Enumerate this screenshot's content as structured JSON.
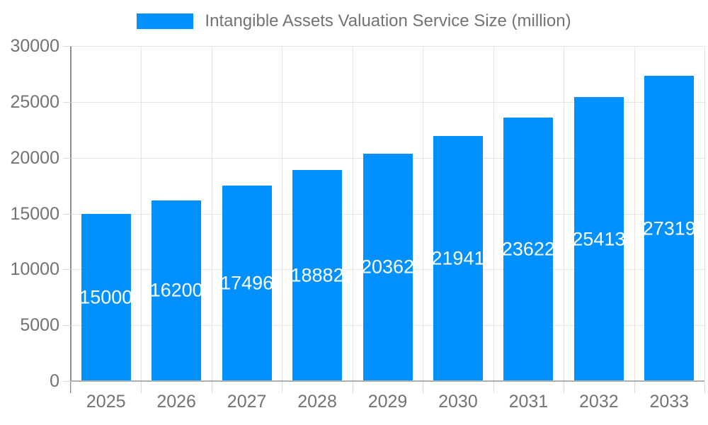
{
  "palette": {
    "bar": "#0190FF",
    "bar_label": "#ffffff",
    "grid": "#e4e4e4",
    "tick": "#d9d9d9",
    "axis_line_x": "#aeaeae",
    "axis_line_y": "#8c8c8c",
    "axis_text": "#737373",
    "legend_text": "#737373",
    "background": "#ffffff"
  },
  "chart_data": {
    "type": "bar",
    "title": "",
    "xlabel": "",
    "ylabel": "",
    "legend": [
      "Intangible Assets Valuation Service Size (million)"
    ],
    "legend_position": "top",
    "categories": [
      "2025",
      "2026",
      "2027",
      "2028",
      "2029",
      "2030",
      "2031",
      "2032",
      "2033"
    ],
    "series": [
      {
        "name": "Intangible Assets Valuation Service Size (million)",
        "values": [
          15000,
          16200,
          17496,
          18882,
          20362,
          21941,
          23622,
          25413,
          27319
        ]
      }
    ],
    "values": [
      15000,
      16200,
      17496,
      18882,
      20362,
      21941,
      23622,
      25413,
      27319
    ],
    "data_labels": "inside-center",
    "ylim": [
      0,
      30000
    ],
    "yticks": [
      0,
      5000,
      10000,
      15000,
      20000,
      25000,
      30000
    ],
    "grid": true
  }
}
